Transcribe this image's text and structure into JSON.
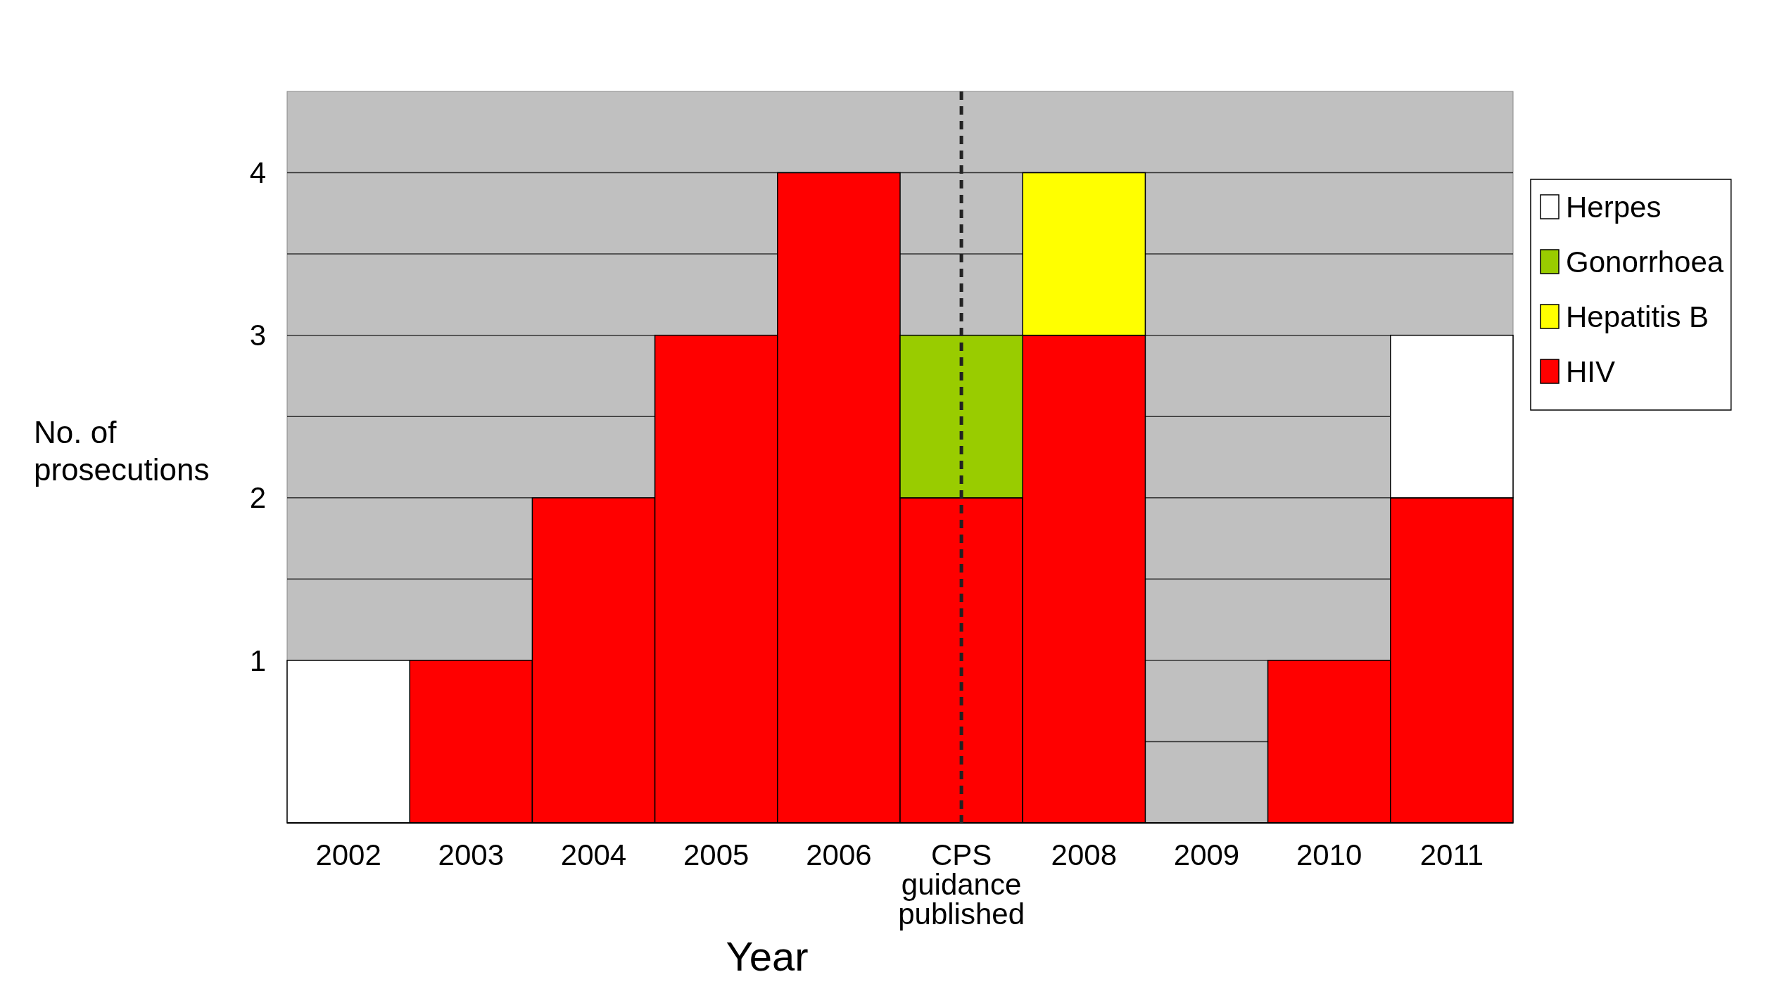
{
  "chart_data": {
    "type": "bar",
    "stacked": true,
    "xlabel": "Year",
    "ylabel": "No. of prosecutions",
    "categories": [
      "2002",
      "2003",
      "2004",
      "2005",
      "2006",
      "CPS guidance published",
      "2008",
      "2009",
      "2010",
      "2011"
    ],
    "series": [
      {
        "name": "HIV",
        "color": "#ff0000",
        "values": [
          0,
          1,
          2,
          3,
          4,
          2,
          3,
          0,
          1,
          2
        ]
      },
      {
        "name": "Hepatitis B",
        "color": "#ffff00",
        "values": [
          0,
          0,
          0,
          0,
          0,
          0,
          1,
          0,
          0,
          0
        ]
      },
      {
        "name": "Gonorrhoea",
        "color": "#99cc00",
        "values": [
          0,
          0,
          0,
          0,
          0,
          1,
          0,
          0,
          0,
          0
        ]
      },
      {
        "name": "Herpes",
        "color": "#ffffff",
        "values": [
          1,
          0,
          0,
          0,
          0,
          0,
          0,
          0,
          0,
          1
        ]
      }
    ],
    "ylim": [
      0,
      4.5
    ],
    "yticks": [
      {
        "value": 0.5,
        "label": null
      },
      1,
      {
        "value": 1.5,
        "label": null
      },
      2,
      {
        "value": 2.5,
        "label": null
      },
      3,
      {
        "value": 3.5,
        "label": null
      },
      4
    ],
    "grid": "y",
    "legend": "right",
    "ref_lines": [
      {
        "axis": "x",
        "value": "CPS guidance published",
        "color": "#222222",
        "line_style": "dashed"
      }
    ]
  }
}
